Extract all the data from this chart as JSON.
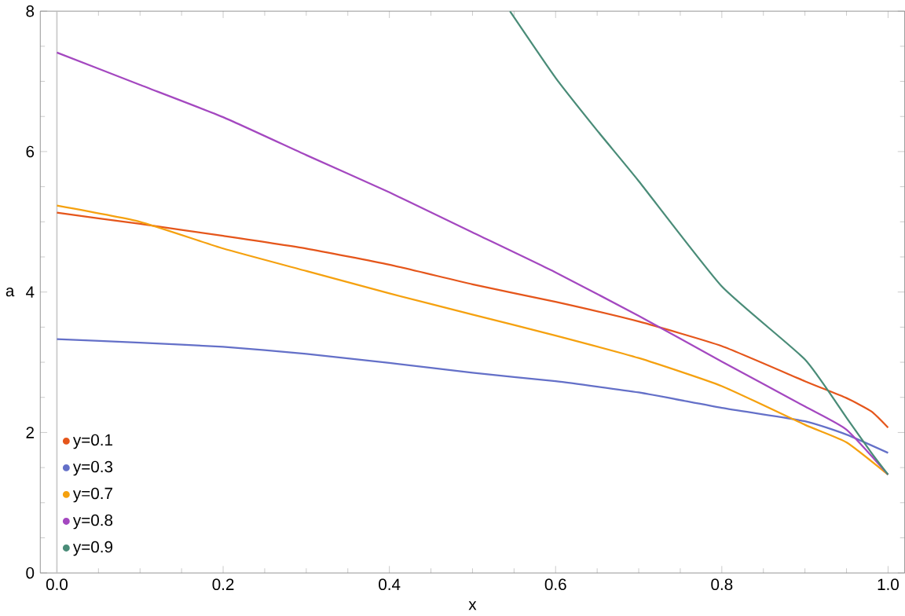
{
  "chart_data": {
    "type": "line",
    "xlabel": "x",
    "ylabel": "a",
    "xlim": [
      -0.02,
      1.02
    ],
    "ylim": [
      0,
      8
    ],
    "xticks": [
      {
        "value": 0,
        "label": "0.0"
      },
      0.2,
      0.4,
      0.6,
      0.8,
      {
        "value": 1,
        "label": "1.0"
      }
    ],
    "yticks": [
      0,
      2,
      4,
      6,
      8
    ],
    "legend": "bottom left",
    "marker": "none",
    "line_style": "solid",
    "grid": false,
    "ref_lines": [
      {
        "axis": "x",
        "value": 0,
        "color": "#c8c8c8"
      }
    ],
    "series": [
      {
        "name": "y=0.1",
        "color": "#e5561b",
        "x": [
          0,
          0.1,
          0.2,
          0.3,
          0.4,
          0.5,
          0.6,
          0.7,
          0.8,
          0.9,
          0.95,
          0.98,
          1.0
        ],
        "values": [
          5.13,
          4.97,
          4.8,
          4.62,
          4.39,
          4.11,
          3.86,
          3.58,
          3.23,
          2.73,
          2.49,
          2.3,
          2.07
        ]
      },
      {
        "name": "y=0.3",
        "color": "#6470c8",
        "x": [
          0,
          0.1,
          0.2,
          0.3,
          0.4,
          0.5,
          0.6,
          0.7,
          0.8,
          0.9,
          0.95,
          1.0
        ],
        "values": [
          3.33,
          3.28,
          3.22,
          3.12,
          2.99,
          2.85,
          2.73,
          2.57,
          2.35,
          2.16,
          1.97,
          1.71
        ]
      },
      {
        "name": "y=0.7",
        "color": "#f5a10f",
        "x": [
          0,
          0.1,
          0.2,
          0.3,
          0.4,
          0.5,
          0.6,
          0.7,
          0.8,
          0.9,
          0.95,
          1.0
        ],
        "values": [
          5.23,
          5.0,
          4.62,
          4.3,
          3.98,
          3.68,
          3.38,
          3.06,
          2.66,
          2.11,
          1.86,
          1.4
        ]
      },
      {
        "name": "y=0.8",
        "color": "#a448c0",
        "x": [
          0,
          0.1,
          0.2,
          0.3,
          0.4,
          0.5,
          0.6,
          0.7,
          0.8,
          0.9,
          0.95,
          1.0
        ],
        "values": [
          7.41,
          6.95,
          6.49,
          5.95,
          5.42,
          4.85,
          4.28,
          3.66,
          3.01,
          2.37,
          2.04,
          1.4
        ]
      },
      {
        "name": "y=0.9",
        "color": "#4a8c78",
        "x": [
          0.545,
          0.6,
          0.65,
          0.7,
          0.8,
          0.9,
          0.95,
          0.98,
          1.0
        ],
        "values": [
          8.0,
          7.05,
          6.3,
          5.58,
          4.08,
          3.04,
          2.21,
          1.71,
          1.4
        ]
      }
    ]
  }
}
